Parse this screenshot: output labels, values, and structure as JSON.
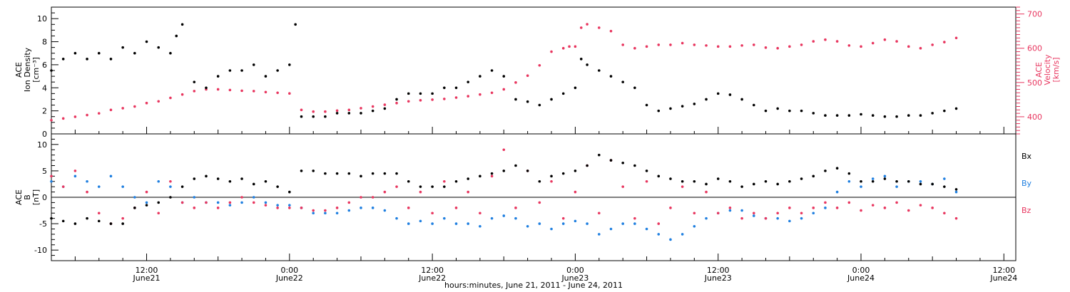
{
  "figure": {
    "xlabel": "hours:minutes, June 21, 2011 - June 24, 2011",
    "colors": {
      "black": "#000000",
      "pink": "#e8365f",
      "blue": "#1f7fe0"
    },
    "x_ticks": [
      {
        "x": 12,
        "time": "12:00",
        "date": "June21"
      },
      {
        "x": 24,
        "time": "0:00",
        "date": "June22"
      },
      {
        "x": 36,
        "time": "12:00",
        "date": "June22"
      },
      {
        "x": 48,
        "time": "0:00",
        "date": "June23"
      },
      {
        "x": 60,
        "time": "12:00",
        "date": "June23"
      },
      {
        "x": 72,
        "time": "0:00",
        "date": "June24"
      },
      {
        "x": 84,
        "time": "12:00",
        "date": "June24"
      }
    ]
  },
  "chart_data": [
    {
      "type": "scatter",
      "panel": "top",
      "ylabel_left": [
        "ACE",
        "Ion Density",
        "[cm⁻³]"
      ],
      "ylabel_right": [
        "ACE",
        "Velocity",
        "[km/s]"
      ],
      "x_unit": "hours since June 21, 2011 00:00",
      "xlim": [
        4,
        85
      ],
      "ylim_left": [
        0,
        11
      ],
      "left_ticks": [
        0,
        2,
        4,
        6,
        8,
        10
      ],
      "ylim_right": [
        350,
        720
      ],
      "right_ticks": [
        400,
        500,
        600,
        700
      ],
      "series": [
        {
          "axis": "left",
          "color": "black",
          "x": [
            4,
            5,
            6,
            7,
            8,
            9,
            10,
            11,
            12,
            13,
            14,
            14.5,
            15,
            16,
            17,
            18,
            19,
            20,
            21,
            22,
            23,
            24,
            24.5,
            25,
            26,
            27,
            28,
            29,
            30,
            31,
            32,
            33,
            34,
            35,
            36,
            37,
            38,
            39,
            40,
            41,
            42,
            43,
            44,
            45,
            46,
            47,
            48,
            48.5,
            49,
            50,
            51,
            52,
            53,
            54,
            55,
            56,
            57,
            58,
            59,
            60,
            61,
            62,
            63,
            64,
            65,
            66,
            67,
            68,
            69,
            70,
            71,
            72,
            73,
            74,
            75,
            76,
            77,
            78,
            79,
            80
          ],
          "y": [
            5.5,
            6.5,
            7.0,
            6.5,
            7.0,
            6.5,
            7.5,
            7.0,
            8.0,
            7.5,
            7.0,
            8.5,
            9.5,
            4.5,
            4.0,
            5.0,
            5.5,
            5.5,
            6.0,
            5.0,
            5.5,
            6.0,
            9.5,
            1.5,
            1.5,
            1.5,
            1.8,
            1.8,
            1.8,
            2.0,
            2.2,
            3.0,
            3.5,
            3.5,
            3.5,
            4.0,
            4.0,
            4.5,
            5.0,
            5.5,
            5.0,
            3.0,
            2.8,
            2.5,
            3.0,
            3.5,
            4.0,
            6.5,
            6.0,
            5.5,
            5.0,
            4.5,
            4.0,
            2.5,
            2.0,
            2.2,
            2.4,
            2.6,
            3.0,
            3.5,
            3.4,
            3.0,
            2.5,
            2.0,
            2.2,
            2.0,
            2.0,
            1.8,
            1.6,
            1.6,
            1.6,
            1.7,
            1.6,
            1.5,
            1.5,
            1.6,
            1.6,
            1.8,
            2.0,
            2.2
          ]
        },
        {
          "axis": "right",
          "color": "pink",
          "x": [
            4,
            5,
            6,
            7,
            8,
            9,
            10,
            11,
            12,
            13,
            14,
            15,
            16,
            17,
            18,
            19,
            20,
            21,
            22,
            23,
            24,
            25,
            26,
            27,
            28,
            29,
            30,
            31,
            32,
            33,
            34,
            35,
            36,
            37,
            38,
            39,
            40,
            41,
            42,
            43,
            44,
            45,
            46,
            47,
            47.5,
            48,
            48.5,
            49,
            50,
            51,
            52,
            53,
            54,
            55,
            56,
            57,
            58,
            59,
            60,
            61,
            62,
            63,
            64,
            65,
            66,
            67,
            68,
            69,
            70,
            71,
            72,
            73,
            74,
            75,
            76,
            77,
            78,
            79,
            80
          ],
          "y": [
            390,
            395,
            400,
            405,
            410,
            420,
            425,
            430,
            440,
            445,
            455,
            465,
            475,
            480,
            480,
            478,
            476,
            475,
            472,
            470,
            468,
            420,
            415,
            415,
            418,
            420,
            425,
            430,
            435,
            440,
            445,
            448,
            450,
            452,
            456,
            460,
            465,
            470,
            480,
            500,
            520,
            550,
            590,
            600,
            605,
            605,
            660,
            670,
            660,
            650,
            610,
            600,
            605,
            610,
            610,
            615,
            610,
            608,
            605,
            605,
            608,
            610,
            602,
            600,
            605,
            610,
            620,
            625,
            620,
            608,
            605,
            615,
            625,
            620,
            605,
            600,
            610,
            618,
            630
          ]
        }
      ]
    },
    {
      "type": "scatter",
      "panel": "bottom",
      "ylabel_left": [
        "ACE",
        "B",
        "[nT]"
      ],
      "x_unit": "hours since June 21, 2011 00:00",
      "xlim": [
        4,
        85
      ],
      "ylim": [
        -12,
        12
      ],
      "left_ticks": [
        -10,
        -5,
        0,
        5,
        10
      ],
      "zero_line": true,
      "series": [
        {
          "name": "Bx",
          "color": "black",
          "x": [
            4,
            5,
            6,
            7,
            8,
            9,
            10,
            11,
            12,
            13,
            14,
            15,
            16,
            17,
            18,
            19,
            20,
            21,
            22,
            23,
            24,
            25,
            26,
            27,
            28,
            29,
            30,
            31,
            32,
            33,
            34,
            35,
            36,
            37,
            38,
            39,
            40,
            41,
            42,
            43,
            44,
            45,
            46,
            47,
            48,
            49,
            50,
            51,
            52,
            53,
            54,
            55,
            56,
            57,
            58,
            59,
            60,
            61,
            62,
            63,
            64,
            65,
            66,
            67,
            68,
            69,
            70,
            71,
            72,
            73,
            74,
            75,
            76,
            77,
            78,
            79,
            80
          ],
          "y": [
            -4,
            -4.5,
            -5,
            -4,
            -4.5,
            -5,
            -5,
            -2,
            -1.5,
            -1,
            0,
            2,
            3.5,
            4,
            3.5,
            3,
            3.5,
            2.5,
            3,
            2,
            1,
            5,
            5,
            4.5,
            4.5,
            4.5,
            4,
            4.5,
            4.5,
            4.5,
            3,
            2,
            2,
            2,
            3,
            3.5,
            4,
            4.5,
            5,
            6,
            5,
            3,
            4,
            4.5,
            5,
            6,
            8,
            7,
            6.5,
            6,
            5,
            4,
            3.5,
            3,
            3,
            2.5,
            3.5,
            3,
            2,
            2.5,
            3,
            2.5,
            3,
            3.5,
            4,
            5,
            5.5,
            4.5,
            3,
            3,
            3.5,
            3,
            3,
            2.5,
            2.5,
            2,
            1.5
          ]
        },
        {
          "name": "By",
          "color": "blue",
          "x": [
            4,
            5,
            6,
            7,
            8,
            9,
            10,
            11,
            12,
            13,
            14,
            15,
            16,
            17,
            18,
            19,
            20,
            21,
            22,
            23,
            24,
            25,
            26,
            27,
            28,
            29,
            30,
            31,
            32,
            33,
            34,
            35,
            36,
            37,
            38,
            39,
            40,
            41,
            42,
            43,
            44,
            45,
            46,
            47,
            48,
            49,
            50,
            51,
            52,
            53,
            54,
            55,
            56,
            57,
            58,
            59,
            60,
            61,
            62,
            63,
            64,
            65,
            66,
            67,
            68,
            69,
            70,
            71,
            72,
            73,
            74,
            75,
            76,
            77,
            78,
            79,
            80
          ],
          "y": [
            3,
            2,
            4,
            3,
            2,
            4,
            2,
            0,
            -1,
            3,
            2,
            -1,
            0,
            -1,
            -1,
            -1.5,
            -1,
            0,
            -1,
            -1.5,
            -1.5,
            -2,
            -3,
            -3,
            -3,
            -2.5,
            -2,
            -2,
            -2.5,
            -4,
            -5,
            -4.5,
            -5,
            -4,
            -5,
            -5,
            -5.5,
            -4,
            -3.5,
            -4,
            -5.5,
            -5,
            -6,
            -5,
            -4.5,
            -5,
            -7,
            -6,
            -5,
            -5,
            -6,
            -7,
            -8,
            -7,
            -5.5,
            -4,
            -3,
            -2.5,
            -2.5,
            -3.5,
            -4,
            -4,
            -4.5,
            -4,
            -3,
            -2,
            1,
            3,
            2,
            3.5,
            4,
            2,
            3,
            3,
            2.5,
            3.5,
            1
          ]
        },
        {
          "name": "Bz",
          "color": "pink",
          "x": [
            4,
            5,
            6,
            7,
            8,
            9,
            10,
            11,
            12,
            13,
            14,
            15,
            16,
            17,
            18,
            19,
            20,
            21,
            22,
            23,
            24,
            25,
            26,
            27,
            28,
            29,
            30,
            31,
            32,
            33,
            34,
            35,
            36,
            37,
            38,
            39,
            40,
            41,
            42,
            43,
            44,
            45,
            46,
            47,
            48,
            49,
            50,
            51,
            52,
            53,
            54,
            55,
            56,
            57,
            58,
            59,
            60,
            61,
            62,
            63,
            64,
            65,
            66,
            67,
            68,
            69,
            70,
            71,
            72,
            73,
            74,
            75,
            76,
            77,
            78,
            79,
            80
          ],
          "y": [
            4,
            2,
            5,
            1,
            -3,
            -5,
            -4,
            -2,
            1,
            -3,
            3,
            -1,
            -2,
            -1,
            -2,
            -1,
            0,
            -1,
            -1.5,
            -2,
            -2,
            -2,
            -2.5,
            -2.5,
            -2,
            -1,
            0,
            0,
            1,
            2,
            -2,
            1,
            -3,
            3,
            -2,
            1,
            -3,
            4,
            9,
            -2,
            5,
            -1,
            3,
            -4,
            1,
            6,
            -3,
            7,
            2,
            -4,
            3,
            -5,
            -2,
            2,
            -3,
            1,
            -3,
            -2,
            -4,
            -3,
            -4,
            -3,
            -2,
            -3,
            -2,
            -1,
            -2,
            -1,
            -2.5,
            -1.5,
            -2,
            -1,
            -2.5,
            -1.5,
            -2,
            -3,
            -4
          ]
        }
      ]
    }
  ]
}
